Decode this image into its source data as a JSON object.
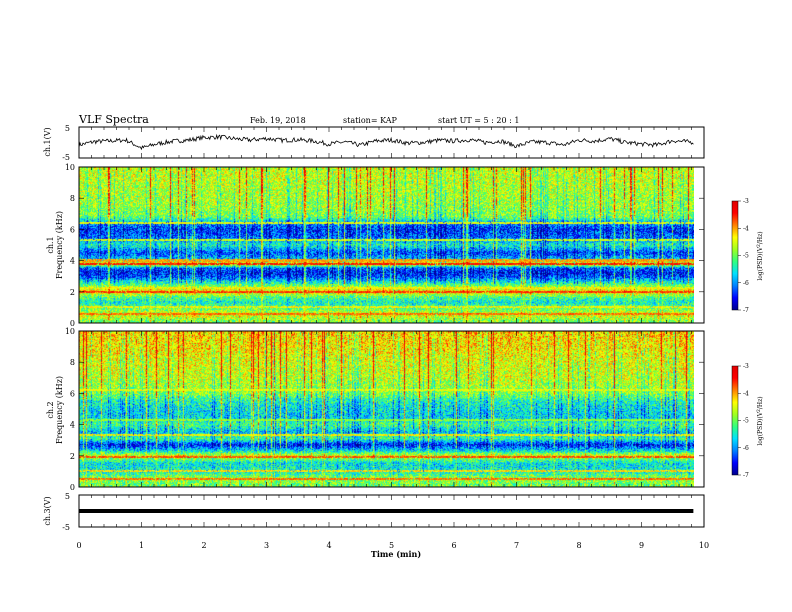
{
  "header": {
    "title": "VLF Spectra",
    "date": "Feb. 19, 2018",
    "station": "station= KAP",
    "start_ut": "start  UT =   5 : 20 : 1"
  },
  "chart_data": [
    {
      "type": "line",
      "id": "ch1-waveform",
      "ylabel": "ch.1(V)",
      "ylim": [
        -5,
        5
      ],
      "yticks": [
        "5",
        "-5"
      ],
      "xlim": [
        0,
        10
      ],
      "x_end": 9.83,
      "series": [
        {
          "sampled_every_min": 0.25,
          "values": [
            -0.8,
            0.3,
            0.5,
            0.8,
            -1.8,
            -0.4,
            0.4,
            0.8,
            1.6,
            1.8,
            1.2,
            0.8,
            1.3,
            0.7,
            0.9,
            0.5,
            -0.5,
            0.2,
            -0.9,
            0.5,
            0.8,
            -0.2,
            0.0,
            0.7,
            0.5,
            0.9,
            0.0,
            0.5,
            -1.2,
            0.2,
            0.0,
            -0.8,
            0.8,
            0.5,
            1.2,
            0.0,
            -0.5,
            -0.8,
            0.6,
            0.2
          ]
        }
      ]
    },
    {
      "type": "heatmap",
      "id": "ch1-spectrogram",
      "ylabel": "ch.1 Frequency (kHz)",
      "ylim": [
        0,
        10
      ],
      "yticks": [
        "0",
        "2",
        "4",
        "6",
        "8",
        "10"
      ],
      "xlim": [
        0,
        10
      ],
      "x_end": 9.83,
      "colorbar": {
        "label": "log(PSD)(V²/Hz)",
        "range": [
          -7,
          -3
        ],
        "ticks": [
          "-3",
          "-4",
          "-5",
          "-6",
          "-7"
        ]
      },
      "psd_profile_khz": [
        [
          0.0,
          -5.0
        ],
        [
          0.5,
          -4.4
        ],
        [
          1.0,
          -5.2
        ],
        [
          1.3,
          -5.5
        ],
        [
          1.6,
          -5.2
        ],
        [
          2.0,
          -4.2
        ],
        [
          2.3,
          -4.8
        ],
        [
          2.6,
          -5.5
        ],
        [
          2.9,
          -6.2
        ],
        [
          3.2,
          -6.5
        ],
        [
          3.5,
          -6.2
        ],
        [
          3.8,
          -4.0
        ],
        [
          4.1,
          -5.8
        ],
        [
          4.5,
          -6.3
        ],
        [
          5.0,
          -5.4
        ],
        [
          5.5,
          -6.2
        ],
        [
          6.0,
          -6.4
        ],
        [
          6.4,
          -6.0
        ],
        [
          6.8,
          -5.0
        ],
        [
          7.5,
          -4.8
        ],
        [
          8.5,
          -4.7
        ],
        [
          9.5,
          -4.6
        ],
        [
          10.0,
          -4.6
        ]
      ],
      "horizontal_lines_khz": [
        [
          0.55,
          -3.8
        ],
        [
          1.0,
          -4.3
        ],
        [
          1.95,
          -3.6
        ],
        [
          2.2,
          -4.3
        ],
        [
          3.75,
          -3.5
        ],
        [
          4.0,
          -4.0
        ],
        [
          5.3,
          -4.5
        ],
        [
          6.4,
          -4.4
        ]
      ]
    },
    {
      "type": "heatmap",
      "id": "ch2-spectrogram",
      "ylabel": "ch.2 Frequency (kHz)",
      "ylim": [
        0,
        10
      ],
      "yticks": [
        "0",
        "2",
        "4",
        "6",
        "8",
        "10"
      ],
      "xlim": [
        0,
        10
      ],
      "x_end": 9.83,
      "colorbar": {
        "label": "log(PSD)(V²/Hz)",
        "range": [
          -7,
          -3
        ],
        "ticks": [
          "-3",
          "-4",
          "-5",
          "-6",
          "-7"
        ]
      },
      "psd_profile_khz": [
        [
          0.0,
          -5.0
        ],
        [
          0.5,
          -4.8
        ],
        [
          1.0,
          -5.5
        ],
        [
          1.5,
          -5.6
        ],
        [
          2.0,
          -4.5
        ],
        [
          2.3,
          -5.6
        ],
        [
          2.7,
          -6.5
        ],
        [
          3.1,
          -5.2
        ],
        [
          3.5,
          -5.8
        ],
        [
          4.0,
          -5.2
        ],
        [
          4.5,
          -5.7
        ],
        [
          5.0,
          -5.6
        ],
        [
          5.5,
          -5.4
        ],
        [
          6.0,
          -4.9
        ],
        [
          7.0,
          -4.6
        ],
        [
          8.0,
          -4.5
        ],
        [
          9.0,
          -4.3
        ],
        [
          10.0,
          -4.2
        ]
      ],
      "horizontal_lines_khz": [
        [
          0.5,
          -3.8
        ],
        [
          1.0,
          -4.2
        ],
        [
          1.9,
          -3.7
        ],
        [
          3.3,
          -4.3
        ],
        [
          4.3,
          -4.8
        ],
        [
          6.2,
          -4.4
        ]
      ]
    },
    {
      "type": "line",
      "id": "ch3-waveform",
      "ylabel": "ch.3(V)",
      "ylim": [
        -5,
        5
      ],
      "yticks": [
        "5",
        "-5"
      ],
      "xlim": [
        0,
        10
      ],
      "x_end": 9.83,
      "series": [
        {
          "constant_value": 0.0
        }
      ]
    }
  ],
  "xaxis": {
    "label": "Time  (min)",
    "ticks": [
      "0",
      "1",
      "2",
      "3",
      "4",
      "5",
      "6",
      "7",
      "8",
      "9",
      "10"
    ]
  },
  "colors": {
    "colormap": [
      "#00008c",
      "#0000ff",
      "#0080ff",
      "#00e0ff",
      "#30ff80",
      "#a0ff20",
      "#ffff00",
      "#ff8000",
      "#ff0000",
      "#e00000"
    ]
  }
}
